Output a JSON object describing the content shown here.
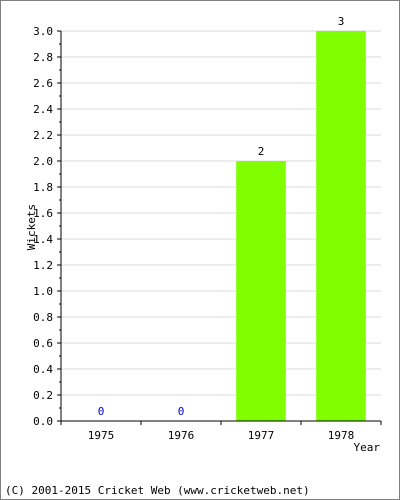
{
  "chart_data": {
    "type": "bar",
    "title": "",
    "xlabel": "Year",
    "ylabel": "Wickets",
    "categories": [
      "1975",
      "1976",
      "1977",
      "1978"
    ],
    "values": [
      0,
      0,
      2,
      3
    ],
    "data_labels": [
      "0",
      "0",
      "2",
      "3"
    ],
    "ylim": [
      0,
      3
    ],
    "yticks": [
      "0.0",
      "0.2",
      "0.4",
      "0.6",
      "0.8",
      "1.0",
      "1.2",
      "1.4",
      "1.6",
      "1.8",
      "2.0",
      "2.2",
      "2.4",
      "2.6",
      "2.8",
      "3.0"
    ],
    "ytick_values": [
      0,
      0.2,
      0.4,
      0.6,
      0.8,
      1.0,
      1.2,
      1.4,
      1.6,
      1.8,
      2.0,
      2.2,
      2.4,
      2.6,
      2.8,
      3.0
    ],
    "grid": "horizontal",
    "bar_color": "#7fff00",
    "zero_label_color": "#0000cc",
    "gridline_color": "#d8d8d8"
  },
  "footer": {
    "copyright": "(C) 2001-2015 Cricket Web (www.cricketweb.net)"
  }
}
